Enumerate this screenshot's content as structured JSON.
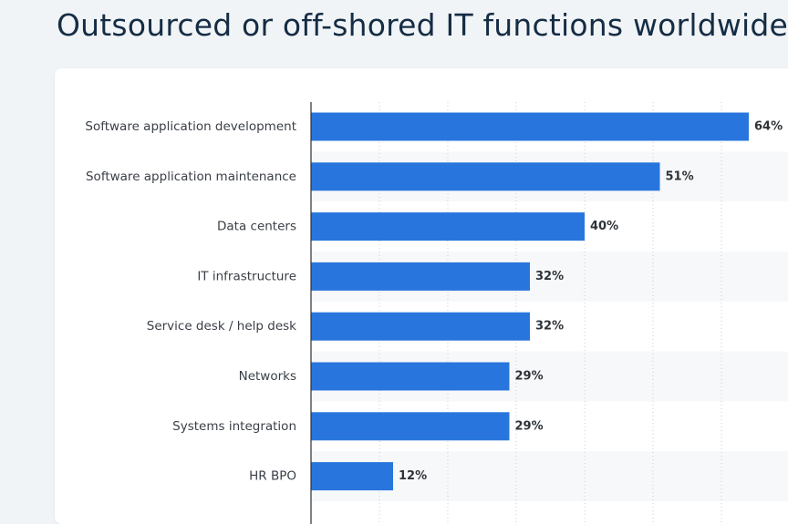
{
  "page": {
    "title": "Outsourced or off-shored IT functions worldwide"
  },
  "chart_data": {
    "type": "bar",
    "orientation": "horizontal",
    "categories": [
      "Software application development",
      "Software application maintenance",
      "Data centers",
      "IT infrastructure",
      "Service desk / help desk",
      "Networks",
      "Systems integration",
      "HR BPO"
    ],
    "values": [
      64,
      51,
      40,
      32,
      32,
      29,
      29,
      12
    ],
    "value_suffix": "%",
    "xlim": [
      0,
      70
    ],
    "grid": true,
    "bar_color": "#2876dd",
    "band_color": "#f7f8fa"
  }
}
